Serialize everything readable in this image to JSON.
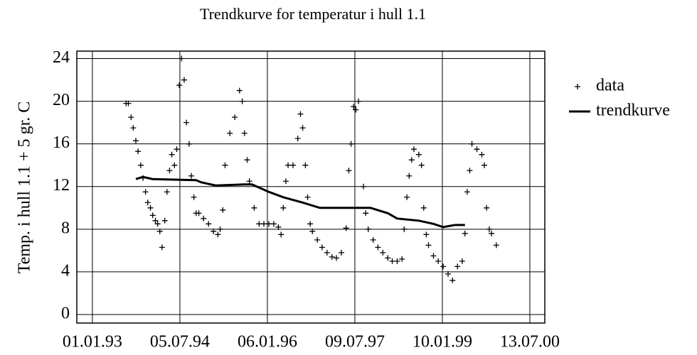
{
  "chart_data": {
    "type": "scatter",
    "title": "Trendkurve for temperatur i hull 1.1",
    "y_label": "Temp. i hull 1.1 + 5 gr. C",
    "xlim": [
      "1992-09-25",
      "2000-10-15"
    ],
    "ylim": [
      -0.8,
      24.7
    ],
    "xticks": [
      {
        "value": "1993-01-01",
        "label": "01.01.93"
      },
      {
        "value": "1994-07-05",
        "label": "05.07.94"
      },
      {
        "value": "1996-01-06",
        "label": "06.01.96"
      },
      {
        "value": "1997-07-09",
        "label": "09.07.97"
      },
      {
        "value": "1999-01-10",
        "label": "10.01.99"
      },
      {
        "value": "2000-07-13",
        "label": "13.07.00"
      }
    ],
    "yticks": [
      0,
      4,
      8,
      12,
      16,
      20,
      24
    ],
    "grid": true,
    "legend": "right",
    "series": [
      {
        "name": "data",
        "style": "marker",
        "color": "#000000",
        "x": [
          "1993-08-01",
          "1993-08-15",
          "1993-09-01",
          "1993-09-15",
          "1993-10-01",
          "1993-10-15",
          "1993-11-01",
          "1993-11-15",
          "1993-12-01",
          "1993-12-15",
          "1994-01-01",
          "1994-01-15",
          "1994-02-01",
          "1994-02-15",
          "1994-03-01",
          "1994-03-15",
          "1994-04-01",
          "1994-04-15",
          "1994-05-01",
          "1994-05-15",
          "1994-06-01",
          "1994-06-15",
          "1994-07-01",
          "1994-07-15",
          "1994-08-01",
          "1994-08-15",
          "1994-09-01",
          "1994-09-15",
          "1994-10-01",
          "1994-10-15",
          "1994-11-01",
          "1994-12-01",
          "1995-01-01",
          "1995-02-01",
          "1995-03-01",
          "1995-03-15",
          "1995-04-01",
          "1995-04-15",
          "1995-05-15",
          "1995-06-15",
          "1995-07-15",
          "1995-08-01",
          "1995-08-15",
          "1995-09-01",
          "1995-09-15",
          "1995-10-15",
          "1995-11-15",
          "1995-12-15",
          "1996-01-15",
          "1996-02-15",
          "1996-03-15",
          "1996-04-01",
          "1996-04-15",
          "1996-05-01",
          "1996-05-15",
          "1996-06-15",
          "1996-07-15",
          "1996-08-01",
          "1996-08-15",
          "1996-09-01",
          "1996-09-15",
          "1996-10-01",
          "1996-10-15",
          "1996-11-15",
          "1996-12-15",
          "1997-01-15",
          "1997-02-15",
          "1997-03-15",
          "1997-04-15",
          "1997-05-15",
          "1997-06-01",
          "1997-06-15",
          "1997-07-01",
          "1997-07-15",
          "1997-08-01",
          "1997-09-01",
          "1997-09-15",
          "1997-10-01",
          "1997-11-01",
          "1997-12-01",
          "1998-01-01",
          "1998-02-01",
          "1998-03-01",
          "1998-04-01",
          "1998-05-01",
          "1998-05-15",
          "1998-06-01",
          "1998-06-15",
          "1998-07-01",
          "1998-07-15",
          "1998-08-15",
          "1998-09-01",
          "1998-09-15",
          "1998-10-01",
          "1998-10-15",
          "1998-11-15",
          "1998-12-15",
          "1999-01-15",
          "1999-02-15",
          "1999-03-15",
          "1999-04-15",
          "1999-05-15",
          "1999-06-01",
          "1999-06-15",
          "1999-07-01",
          "1999-07-15",
          "1999-08-15",
          "1999-09-15",
          "1999-10-01",
          "1999-10-15",
          "1999-11-01",
          "1999-11-15",
          "1999-12-15"
        ],
        "values": [
          19.8,
          19.8,
          18.5,
          17.5,
          16.3,
          15.3,
          14,
          12.8,
          11.5,
          10.5,
          10,
          9.3,
          8.8,
          8.5,
          7.8,
          6.3,
          8.8,
          11.5,
          13.5,
          15,
          14,
          15.5,
          21.5,
          24,
          22,
          18,
          16,
          13,
          11,
          9.5,
          9.5,
          9,
          8.5,
          7.8,
          7.5,
          8,
          9.8,
          14,
          17,
          18.5,
          21,
          20,
          17,
          14.5,
          12.5,
          10,
          8.5,
          8.5,
          8.5,
          8.5,
          8.2,
          7.5,
          10,
          12.5,
          14,
          14,
          16.5,
          18.8,
          17.5,
          14,
          11,
          8.5,
          7.8,
          7,
          6.3,
          5.8,
          5.4,
          5.3,
          5.8,
          8.1,
          13.5,
          16,
          19.5,
          19.2,
          20,
          12,
          9.5,
          8,
          7,
          6.3,
          5.8,
          5.3,
          5,
          5,
          5.2,
          8,
          11,
          13,
          14.5,
          15.5,
          15,
          14,
          10,
          7.5,
          6.5,
          5.5,
          5,
          4.5,
          3.8,
          3.2,
          4.5,
          5,
          7.6,
          11.5,
          13.5,
          16,
          15.5,
          15,
          14,
          10,
          8,
          7.6,
          6.5
        ]
      },
      {
        "name": "trendkurve",
        "style": "line",
        "color": "#000000",
        "x": [
          "1993-10-01",
          "1993-11-15",
          "1994-01-15",
          "1994-10-15",
          "1994-11-15",
          "1995-02-15",
          "1995-08-15",
          "1995-10-01",
          "1996-01-15",
          "1996-04-15",
          "1996-08-15",
          "1996-12-01",
          "1997-10-15",
          "1998-02-01",
          "1998-04-01",
          "1998-08-15",
          "1998-11-15",
          "1999-01-15",
          "1999-04-01",
          "1999-06-01"
        ],
        "values": [
          12.7,
          12.9,
          12.7,
          12.6,
          12.4,
          12.1,
          12.2,
          12.2,
          11.5,
          11,
          10.5,
          10,
          10,
          9.5,
          9,
          8.8,
          8.5,
          8.2,
          8.4,
          8.4
        ]
      }
    ]
  }
}
